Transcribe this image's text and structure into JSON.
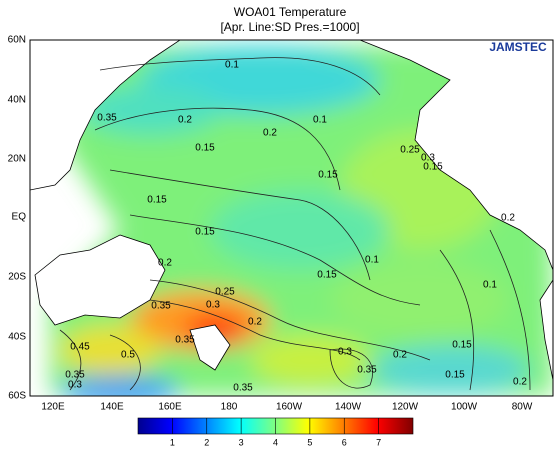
{
  "title": "WOA01 Temperature",
  "subtitle": "[Apr. Line:SD  Pres.=1000]",
  "logo": "JAMSTEC",
  "lat_labels": [
    "60N",
    "40N",
    "20N",
    "EQ",
    "20S",
    "40S",
    "60S"
  ],
  "lon_labels": [
    "120E",
    "140E",
    "160E",
    "180",
    "160W",
    "140W",
    "120W",
    "100W",
    "80W"
  ],
  "contour_labels": [
    "0.1",
    "0.1",
    "0.2",
    "0.15",
    "0.2",
    "0.15",
    "0.15",
    "0.15",
    "0.2",
    "0.1",
    "0.15",
    "0.1",
    "0.2",
    "0.25",
    "0.15",
    "0.3",
    "0.35",
    "0.25",
    "0.3",
    "0.35",
    "0.2",
    "0.35",
    "0.5",
    "0.45",
    "0.35",
    "0.3",
    "0.3",
    "0.35",
    "0.2",
    "0.15",
    "0.2",
    "0.15",
    "0.35"
  ],
  "colorbar": {
    "lim": [
      0,
      8
    ],
    "ticks": [
      1,
      2,
      3,
      4,
      5,
      6,
      7
    ]
  }
}
